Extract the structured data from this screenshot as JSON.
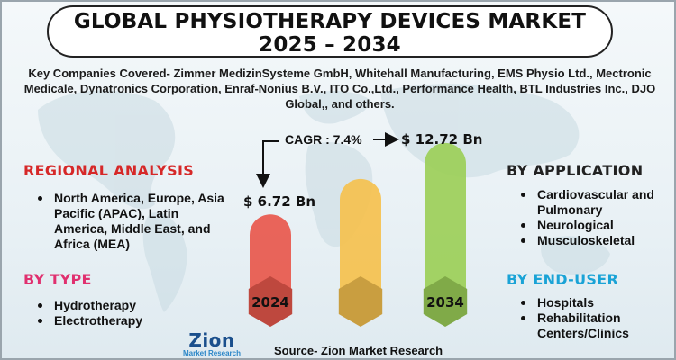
{
  "title": {
    "line1": "GLOBAL PHYSIOTHERAPY DEVICES MARKET",
    "line2": "2025 – 2034"
  },
  "companies_text": "Key Companies Covered- Zimmer MedizinSysteme GmbH, Whitehall Manufacturing, EMS Physio Ltd., Mectronic Medicale, Dynatronics Corporation, Enraf-Nonius B.V., ITO Co.,Ltd., Performance Health, BTL Industries Inc., DJO Global,, and others.",
  "regional": {
    "heading": "REGIONAL ANALYSIS",
    "items": [
      "North America, Europe, Asia Pacific (APAC), Latin America, Middle East, and Africa (MEA)"
    ]
  },
  "by_type": {
    "heading": "BY TYPE",
    "items": [
      "Hydrotherapy",
      "Electrotherapy"
    ]
  },
  "by_application": {
    "heading": "BY APPLICATION",
    "items": [
      "Cardiovascular and Pulmonary",
      "Neurological",
      "Musculoskeletal"
    ]
  },
  "by_end_user": {
    "heading": "BY END-USER",
    "items": [
      "Hospitals",
      "Rehabilitation Centers/Clinics"
    ]
  },
  "cagr_label": "CAGR : 7.4%",
  "value_2024": "$ 6.72 Bn",
  "value_2034": "$ 12.72 Bn",
  "source": "Source- Zion Market Research",
  "logo": {
    "main": "Zion",
    "sub": "Market Research"
  },
  "colors": {
    "bar_2024": "#e8584c",
    "bar_mid": "#f5c14e",
    "bar_2034": "#9ccf58",
    "heading_red": "#d62828",
    "heading_pink": "#e0306f",
    "heading_blue": "#1aa3d6"
  },
  "chart_data": {
    "type": "bar",
    "categories": [
      "2024",
      "",
      "2034"
    ],
    "values": [
      6.72,
      9.7,
      12.72
    ],
    "ylim": [
      0,
      14
    ]
  }
}
